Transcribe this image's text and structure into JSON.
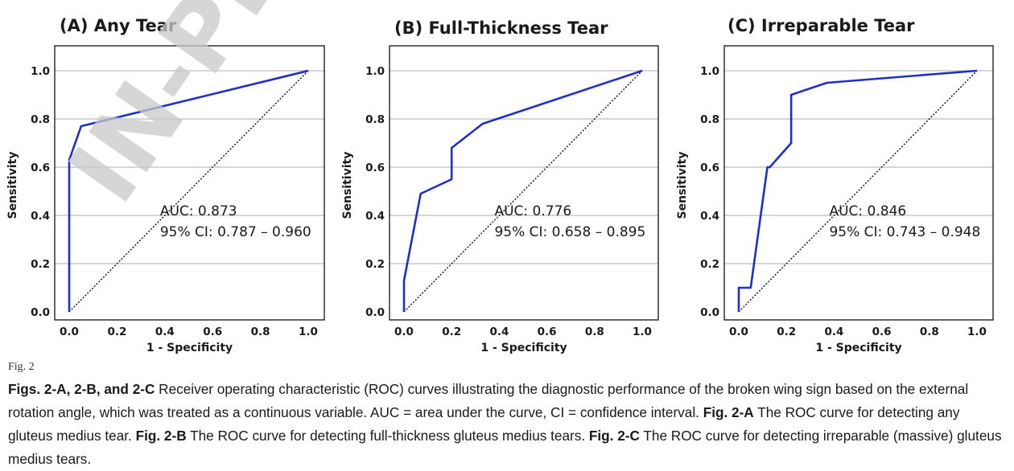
{
  "figure": {
    "watermark": "IN-PRESS",
    "fig_label": "Fig. 2"
  },
  "caption": {
    "parts": [
      {
        "bold": true,
        "text": "Figs. 2-A, 2-B, and 2-C"
      },
      {
        "bold": false,
        "text": " Receiver operating characteristic (ROC) curves illustrating the diagnostic performance of the broken wing sign based on the external rotation angle, which was treated as a continuous variable. AUC = area under the curve, CI = confidence interval. "
      },
      {
        "bold": true,
        "text": "Fig. 2-A"
      },
      {
        "bold": false,
        "text": " The ROC curve for detecting any gluteus medius tear. "
      },
      {
        "bold": true,
        "text": "Fig. 2-B"
      },
      {
        "bold": false,
        "text": " The ROC curve for detecting full-thickness gluteus medius tears. "
      },
      {
        "bold": true,
        "text": "Fig. 2-C"
      },
      {
        "bold": false,
        "text": " The ROC curve for detecting irreparable (massive) gluteus medius tears."
      }
    ]
  },
  "style": {
    "curve_color": "#1f2fc8",
    "grid_color": "#c8c8c8",
    "frame_color": "#222222"
  },
  "chart_data": [
    {
      "type": "line",
      "title": "(A) Any Tear",
      "xlabel": "1 - Specificity",
      "ylabel": "Sensitivity",
      "xlim": [
        0,
        1
      ],
      "ylim": [
        0,
        1
      ],
      "xticks": [
        "0.0",
        "0.2",
        "0.4",
        "0.6",
        "0.8",
        "1.0"
      ],
      "yticks": [
        "0.0",
        "0.2",
        "0.4",
        "0.6",
        "0.8",
        "1.0"
      ],
      "grid": true,
      "series": [
        {
          "name": "ROC",
          "x": [
            0.0,
            0.0,
            0.0,
            0.05,
            1.0
          ],
          "y": [
            0.0,
            0.62,
            0.63,
            0.77,
            1.0
          ]
        },
        {
          "name": "Reference",
          "x": [
            0.0,
            1.0
          ],
          "y": [
            0.0,
            1.0
          ]
        }
      ],
      "annotation": [
        "AUC: 0.873",
        "95% CI: 0.787 – 0.960"
      ]
    },
    {
      "type": "line",
      "title": "(B) Full-Thickness Tear",
      "xlabel": "1 - Specificity",
      "ylabel": "Sensitivity",
      "xlim": [
        0,
        1
      ],
      "ylim": [
        0,
        1
      ],
      "xticks": [
        "0.0",
        "0.2",
        "0.4",
        "0.6",
        "0.8",
        "1.0"
      ],
      "yticks": [
        "0.0",
        "0.2",
        "0.4",
        "0.6",
        "0.8",
        "1.0"
      ],
      "grid": true,
      "series": [
        {
          "name": "ROC",
          "x": [
            0.0,
            0.0,
            0.07,
            0.2,
            0.2,
            0.33,
            1.0
          ],
          "y": [
            0.0,
            0.13,
            0.49,
            0.55,
            0.68,
            0.78,
            1.0
          ]
        },
        {
          "name": "Reference",
          "x": [
            0.0,
            1.0
          ],
          "y": [
            0.0,
            1.0
          ]
        }
      ],
      "annotation": [
        "AUC: 0.776",
        "95% CI: 0.658 – 0.895"
      ]
    },
    {
      "type": "line",
      "title": "(C) Irreparable Tear",
      "xlabel": "1 - Specificity",
      "ylabel": "Sensitivity",
      "xlim": [
        0,
        1
      ],
      "ylim": [
        0,
        1
      ],
      "xticks": [
        "0.0",
        "0.2",
        "0.4",
        "0.6",
        "0.8",
        "1.0"
      ],
      "yticks": [
        "0.0",
        "0.2",
        "0.4",
        "0.6",
        "0.8",
        "1.0"
      ],
      "grid": true,
      "series": [
        {
          "name": "ROC",
          "x": [
            0.0,
            0.0,
            0.05,
            0.12,
            0.13,
            0.22,
            0.22,
            0.37,
            1.0
          ],
          "y": [
            0.0,
            0.1,
            0.1,
            0.6,
            0.6,
            0.7,
            0.9,
            0.95,
            1.0
          ]
        },
        {
          "name": "Reference",
          "x": [
            0.0,
            1.0
          ],
          "y": [
            0.0,
            1.0
          ]
        }
      ],
      "annotation": [
        "AUC: 0.846",
        "95% CI: 0.743 – 0.948"
      ]
    }
  ]
}
